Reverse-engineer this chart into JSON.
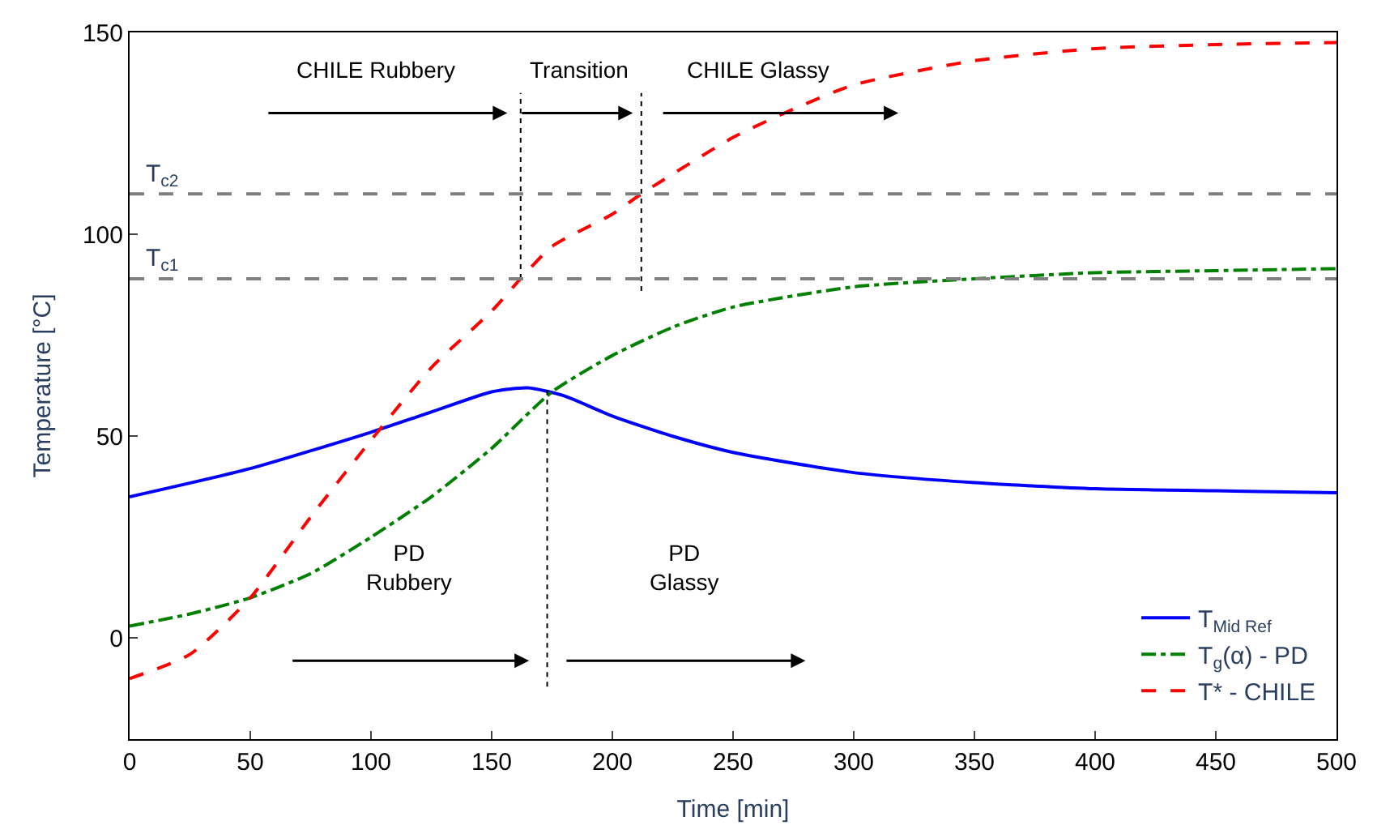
{
  "chart_data": {
    "type": "line",
    "xlabel": "Time [min]",
    "ylabel": "Temperature [°C]",
    "xlim": [
      0,
      500
    ],
    "ylim": [
      -25,
      150
    ],
    "xticks": [
      0,
      50,
      100,
      150,
      200,
      250,
      300,
      350,
      400,
      450,
      500
    ],
    "yticks": [
      0,
      50,
      100,
      150
    ],
    "legend": "bottom right",
    "series": [
      {
        "name": "T$_{Mid Ref}$",
        "color": "#0000ff",
        "line_style": "solid",
        "x": [
          0,
          50,
          100,
          125,
          150,
          165,
          180,
          200,
          225,
          250,
          300,
          350,
          400,
          450,
          500
        ],
        "values": [
          35,
          42,
          51,
          56,
          61,
          62,
          60,
          55,
          50,
          46,
          41,
          38.5,
          37,
          36.5,
          36
        ]
      },
      {
        "name": "T$_{g}$(α) - PD",
        "color": "#008000",
        "line_style": "dashdot",
        "x": [
          0,
          25,
          50,
          75,
          100,
          125,
          150,
          175,
          200,
          225,
          250,
          300,
          350,
          400,
          450,
          500
        ],
        "values": [
          3,
          6,
          10,
          16,
          25,
          35,
          47,
          61,
          70,
          77,
          82,
          87,
          89,
          90.5,
          91,
          91.5
        ]
      },
      {
        "name": "T* - CHILE",
        "color": "#ff0000",
        "line_style": "dashed",
        "x": [
          0,
          25,
          50,
          75,
          100,
          125,
          150,
          162,
          175,
          200,
          212,
          250,
          275,
          300,
          350,
          400,
          450,
          500
        ],
        "values": [
          -10,
          -4,
          10,
          30,
          49,
          67,
          81,
          89,
          97,
          105,
          110,
          124,
          131,
          137,
          143,
          146,
          147,
          147.5
        ]
      },
      {
        "color": "#000000",
        "line_style": "dotted",
        "x": [
          162,
          162
        ],
        "values": [
          89,
          135
        ]
      },
      {
        "color": "#000000",
        "line_style": "dotted",
        "x": [
          212,
          212
        ],
        "values": [
          86,
          135
        ]
      },
      {
        "color": "#000000",
        "line_style": "dotted",
        "x": [
          173,
          173
        ],
        "values": [
          -12,
          62
        ]
      }
    ],
    "ref_lines": [
      {
        "axis": "y",
        "value": 110,
        "label": "T$_{c2}$",
        "color": "#808080",
        "line_style": "dashed"
      },
      {
        "axis": "y",
        "value": 89,
        "label": "T$_{c1}$",
        "color": "#808080",
        "line_style": "dashed"
      }
    ],
    "annotations": [
      "CHILE Rubbery",
      "Transition",
      "CHILE Glassy",
      "PD\nRubbery",
      "PD\nGlassy"
    ]
  }
}
